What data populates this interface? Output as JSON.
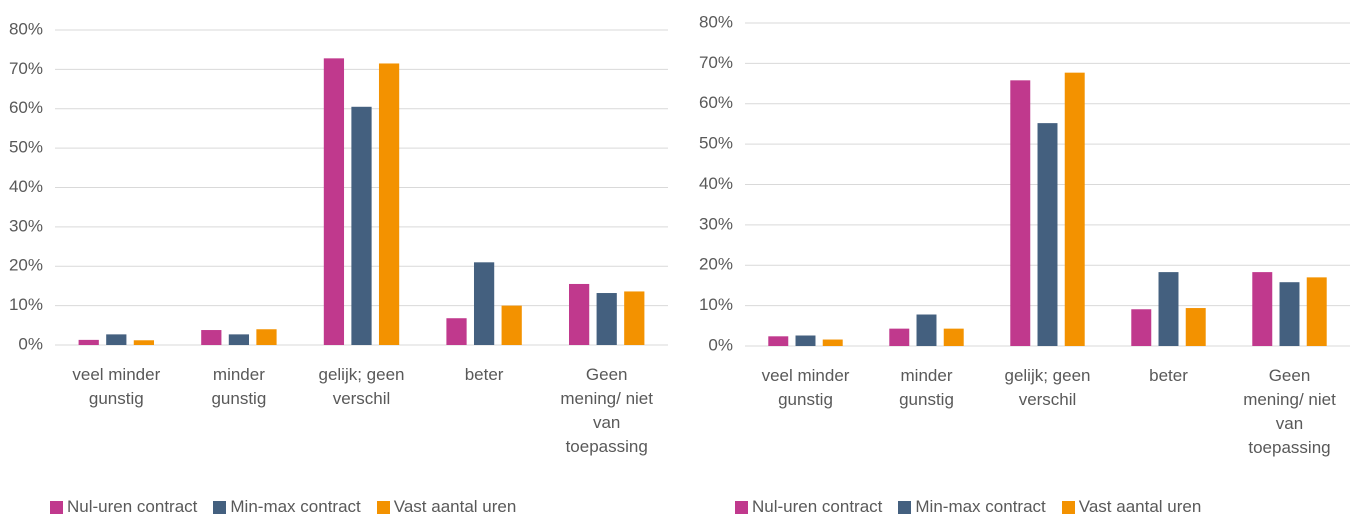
{
  "chart_data": [
    {
      "type": "bar",
      "categories": [
        "veel minder gunstig",
        "minder gunstig",
        "gelijk; geen verschil",
        "beter",
        "Geen mening/ niet van toepassing"
      ],
      "series": [
        {
          "name": "Nul-uren contract",
          "color": "#c0398d",
          "values": [
            1.3,
            3.8,
            72.8,
            6.8,
            15.5
          ]
        },
        {
          "name": "Min-max contract",
          "color": "#44607f",
          "values": [
            2.7,
            2.7,
            60.5,
            21,
            13.2
          ]
        },
        {
          "name": "Vast aantal uren",
          "color": "#f39200",
          "values": [
            1.2,
            4.0,
            71.5,
            10,
            13.6
          ]
        }
      ],
      "ylim": [
        0,
        80
      ],
      "yticks": [
        {
          "value": 0,
          "label": "0%"
        },
        {
          "value": 10,
          "label": "10%"
        },
        {
          "value": 20,
          "label": "20%"
        },
        {
          "value": 30,
          "label": "30%"
        },
        {
          "value": 40,
          "label": "40%"
        },
        {
          "value": 50,
          "label": "50%"
        },
        {
          "value": 60,
          "label": "60%"
        },
        {
          "value": 70,
          "label": "70%"
        },
        {
          "value": 80,
          "label": "80%"
        }
      ],
      "grid": true,
      "legend": "bottom"
    },
    {
      "type": "bar",
      "categories": [
        "veel minder gunstig",
        "minder gunstig",
        "gelijk; geen verschil",
        "beter",
        "Geen mening/ niet van toepassing"
      ],
      "series": [
        {
          "name": "Nul-uren contract",
          "color": "#c0398d",
          "values": [
            2.4,
            4.3,
            65.8,
            9.1,
            18.3
          ]
        },
        {
          "name": "Min-max contract",
          "color": "#44607f",
          "values": [
            2.6,
            7.8,
            55.2,
            18.3,
            15.8
          ]
        },
        {
          "name": "Vast aantal uren",
          "color": "#f39200",
          "values": [
            1.6,
            4.3,
            67.7,
            9.4,
            17.0
          ]
        }
      ],
      "ylim": [
        0,
        80
      ],
      "yticks": [
        {
          "value": 0,
          "label": "0%"
        },
        {
          "value": 10,
          "label": "10%"
        },
        {
          "value": 20,
          "label": "20%"
        },
        {
          "value": 30,
          "label": "30%"
        },
        {
          "value": 40,
          "label": "40%"
        },
        {
          "value": 50,
          "label": "50%"
        },
        {
          "value": 60,
          "label": "60%"
        },
        {
          "value": 70,
          "label": "70%"
        },
        {
          "value": 80,
          "label": "80%"
        }
      ],
      "grid": true,
      "legend": "bottom"
    }
  ]
}
